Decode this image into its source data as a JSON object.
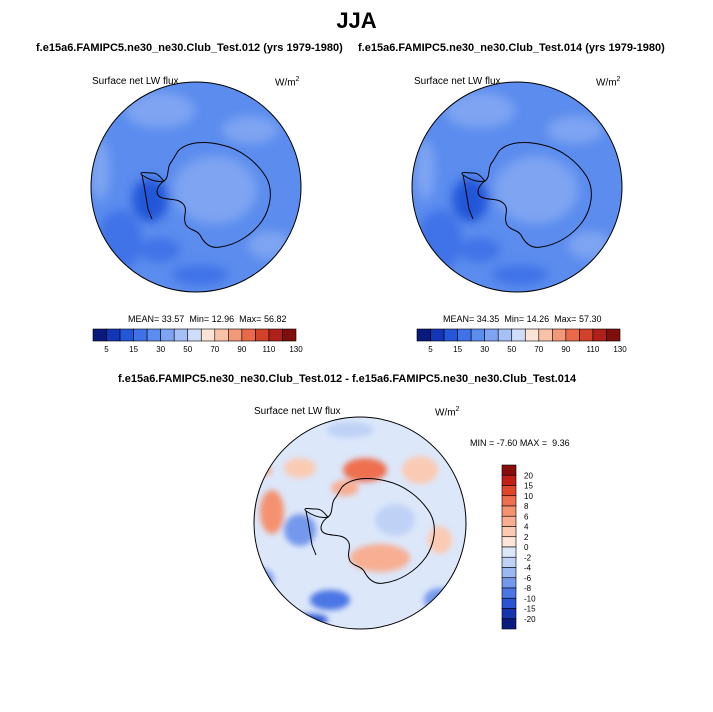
{
  "chart_data": {
    "type": "heatmap",
    "title": "JJA",
    "panels": [
      {
        "id": "test012",
        "kind": "polar-map",
        "title": "f.e15a6.FAMIPC5.ne30_ne30.Club_Test.012 (yrs 1979-1980)",
        "variable": "Surface net LW flux",
        "units_base": "W/m",
        "units_exp": "2",
        "stats": {
          "mean_label": "MEAN=",
          "mean": "33.57",
          "min_label": "Min=",
          "min": "12.96",
          "max_label": "Max=",
          "max": "56.82"
        }
      },
      {
        "id": "test014",
        "kind": "polar-map",
        "title": "f.e15a6.FAMIPC5.ne30_ne30.Club_Test.014 (yrs 1979-1980)",
        "variable": "Surface net LW flux",
        "units_base": "W/m",
        "units_exp": "2",
        "stats": {
          "mean_label": "MEAN=",
          "mean": "34.35",
          "min_label": "Min=",
          "min": "14.26",
          "max_label": "Max=",
          "max": "57.30"
        }
      },
      {
        "id": "diff",
        "kind": "polar-map-difference",
        "title": "f.e15a6.FAMIPC5.ne30_ne30.Club_Test.012 - f.e15a6.FAMIPC5.ne30_ne30.Club_Test.014",
        "variable": "Surface net LW flux",
        "units_base": "W/m",
        "units_exp": "2",
        "stats": {
          "min_label": "MIN =",
          "min": "-7.60",
          "max_label": "MAX =",
          "max": "9.36"
        }
      }
    ],
    "abs_colorbar": {
      "levels": [
        "5",
        "15",
        "30",
        "50",
        "70",
        "90",
        "110",
        "130"
      ],
      "colors": [
        "#0a1a7a",
        "#1335b8",
        "#2356d8",
        "#3f72e8",
        "#5b8cee",
        "#7ea4f2",
        "#a6c0f6",
        "#cfdcfa",
        "#fbe3d6",
        "#f7c2a8",
        "#f2997a",
        "#e86a4a",
        "#d2412a",
        "#b0201a",
        "#7e0f0c"
      ]
    },
    "diff_colorbar": {
      "levels": [
        "20",
        "15",
        "10",
        "8",
        "6",
        "4",
        "2",
        "0",
        "-2",
        "-4",
        "-6",
        "-8",
        "-10",
        "-15",
        "-20"
      ],
      "colors": [
        "#8a0d0d",
        "#c21f16",
        "#e0472a",
        "#ee6f4f",
        "#f4916f",
        "#f8ae92",
        "#fbcab4",
        "#fde5d7",
        "#dce7fa",
        "#bfd2f6",
        "#9cb8f2",
        "#7498ec",
        "#4c76e4",
        "#2a54d2",
        "#1434b0",
        "#0a1a80"
      ]
    }
  }
}
